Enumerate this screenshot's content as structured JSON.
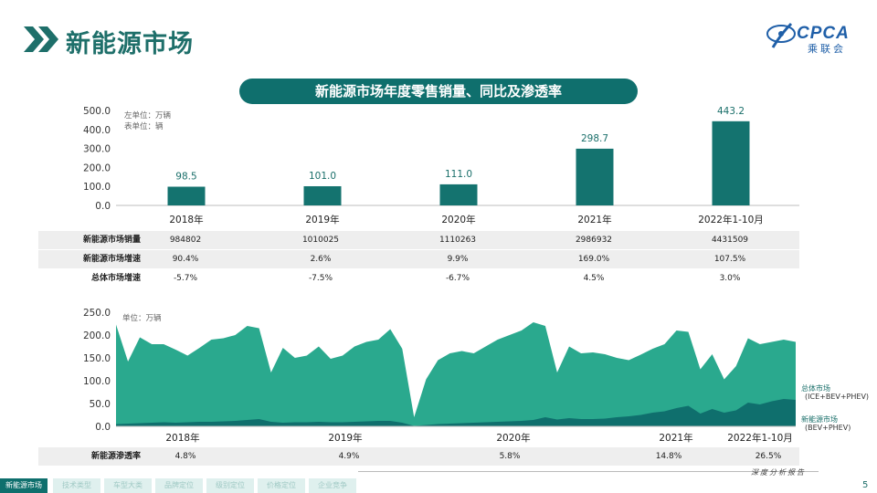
{
  "page": {
    "title": "新能源市场",
    "logo_text": "CPCA",
    "logo_sub": "乘联会",
    "page_number": "5",
    "footer_right": "深度分析报告"
  },
  "nav": [
    {
      "label": "新能源市场",
      "active": true
    },
    {
      "label": "技术类型",
      "active": false
    },
    {
      "label": "车型大类",
      "active": false
    },
    {
      "label": "品牌定位",
      "active": false
    },
    {
      "label": "级别定位",
      "active": false
    },
    {
      "label": "价格定位",
      "active": false
    },
    {
      "label": "企业竞争",
      "active": false
    }
  ],
  "colors": {
    "brand": "#0f6f6d",
    "bar": "#14736f",
    "total_area": "#2aa98e",
    "nev_area": "#0f6f6d"
  },
  "chart_data": [
    {
      "type": "bar",
      "title": "新能源市场年度零售销量、同比及渗透率",
      "unit_left": "左单位：万辆",
      "unit_right": "表单位：辆",
      "categories": [
        "2018年",
        "2019年",
        "2020年",
        "2021年",
        "2022年1-10月"
      ],
      "values": [
        98.5,
        101.0,
        111.0,
        298.7,
        443.2
      ],
      "value_labels": [
        "98.5",
        "101.0",
        "111.0",
        "298.7",
        "443.2"
      ],
      "ylim": [
        0,
        500
      ],
      "yticks": [
        "500.0",
        "400.0",
        "300.0",
        "200.0",
        "100.0",
        "0.0"
      ],
      "table": {
        "rows": [
          {
            "name": "新能源市场销量",
            "values": [
              "984802",
              "1010025",
              "1110263",
              "2986932",
              "4431509"
            ]
          },
          {
            "name": "新能源市场增速",
            "values": [
              "90.4%",
              "2.6%",
              "9.9%",
              "169.0%",
              "107.5%"
            ]
          },
          {
            "name": "总体市场增速",
            "values": [
              "-5.7%",
              "-7.5%",
              "-6.7%",
              "4.5%",
              "3.0%"
            ]
          }
        ]
      }
    },
    {
      "type": "area",
      "unit": "单位：万辆",
      "ylim": [
        0,
        250
      ],
      "yticks": [
        "250.0",
        "200.0",
        "150.0",
        "100.0",
        "50.0",
        "0.0"
      ],
      "x_labels": [
        "2018年",
        "2019年",
        "2020年",
        "2021年",
        "2022年1-10月"
      ],
      "series": [
        {
          "name": "总体市场",
          "sub": "(ICE+BEV+PHEV)",
          "values": [
            223,
            142,
            195,
            180,
            180,
            168,
            155,
            172,
            190,
            193,
            200,
            220,
            215,
            118,
            172,
            150,
            155,
            175,
            148,
            155,
            175,
            185,
            190,
            213,
            170,
            20,
            103,
            145,
            160,
            165,
            160,
            175,
            190,
            200,
            210,
            228,
            220,
            118,
            175,
            160,
            162,
            158,
            150,
            145,
            157,
            170,
            180,
            210,
            207,
            125,
            158,
            103,
            132,
            193,
            180,
            185,
            190,
            185
          ]
        },
        {
          "name": "新能源市场",
          "sub": "(BEV+PHEV)",
          "values": [
            5,
            6,
            7,
            8,
            9,
            8,
            9,
            10,
            10,
            11,
            12,
            14,
            16,
            10,
            8,
            9,
            9,
            10,
            9,
            9,
            10,
            11,
            12,
            12,
            8,
            1,
            3,
            5,
            6,
            7,
            8,
            9,
            10,
            11,
            12,
            14,
            20,
            15,
            18,
            16,
            16,
            17,
            20,
            22,
            25,
            30,
            33,
            40,
            45,
            28,
            38,
            30,
            35,
            52,
            48,
            55,
            60,
            58
          ]
        }
      ],
      "penetration_label": "新能源渗透率",
      "penetration": [
        "4.8%",
        "4.9%",
        "5.8%",
        "14.8%",
        "26.5%"
      ]
    }
  ]
}
